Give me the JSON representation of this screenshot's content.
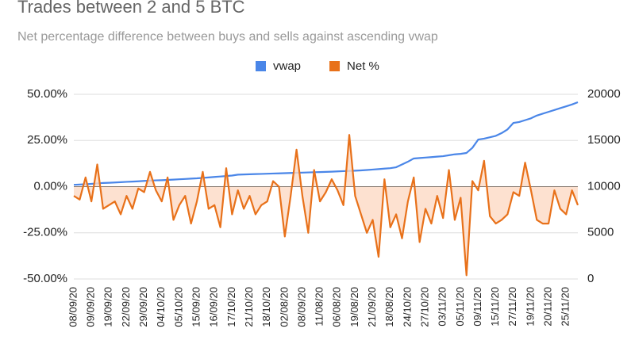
{
  "chart_data": {
    "type": "line",
    "title": "Trades between 2 and 5 BTC",
    "subtitle": "Net percentage difference between buys and sells against ascending vwap",
    "categories": [
      "08/09/20",
      null,
      null,
      "09/09/20",
      null,
      null,
      "19/09/20",
      null,
      null,
      "22/09/20",
      null,
      null,
      "29/09/20",
      null,
      null,
      "04/10/20",
      null,
      null,
      "05/10/20",
      null,
      null,
      "15/09/20",
      null,
      null,
      "16/09/20",
      null,
      null,
      "17/10/20",
      null,
      null,
      "21/10/20",
      null,
      null,
      "18/10/20",
      null,
      null,
      "02/08/20",
      null,
      null,
      "08/09/20",
      null,
      null,
      "11/08/20",
      null,
      null,
      "06/08/20",
      null,
      null,
      "19/08/20",
      null,
      null,
      "21/09/20",
      null,
      null,
      "18/08/20",
      null,
      null,
      "24/10/20",
      null,
      null,
      "27/10/20",
      null,
      null,
      "03/11/20",
      null,
      null,
      "05/11/20",
      null,
      null,
      "09/11/20",
      null,
      null,
      "15/11/20",
      null,
      null,
      "27/11/20",
      null,
      null,
      "19/11/20",
      null,
      null,
      "20/11/20",
      null,
      null,
      "25/11/20",
      null,
      null
    ],
    "series": [
      {
        "name": "vwap",
        "color": "#4a86e8",
        "axis": "y2",
        "values": [
          10200,
          10230,
          10260,
          10300,
          10350,
          10400,
          10420,
          10450,
          10480,
          10520,
          10550,
          10580,
          10620,
          10650,
          10680,
          10700,
          10730,
          10760,
          10800,
          10830,
          10870,
          10900,
          10950,
          11000,
          11050,
          11100,
          11150,
          11200,
          11300,
          11320,
          11340,
          11360,
          11380,
          11400,
          11420,
          11440,
          11460,
          11480,
          11500,
          11520,
          11540,
          11560,
          11580,
          11600,
          11620,
          11650,
          11680,
          11700,
          11730,
          11760,
          11800,
          11850,
          11900,
          11950,
          12000,
          12100,
          12400,
          12700,
          13050,
          13100,
          13150,
          13200,
          13250,
          13300,
          13400,
          13500,
          13550,
          13650,
          14200,
          15100,
          15200,
          15350,
          15500,
          15800,
          16200,
          16900,
          17000,
          17200,
          17400,
          17700,
          17900,
          18100,
          18300,
          18500,
          18700,
          18900,
          19140
        ]
      },
      {
        "name": "Net %",
        "color": "#e8711a",
        "area_color": "#fcd9c4",
        "values": [
          -5,
          -7,
          5,
          -8,
          12,
          -12,
          -10,
          -8,
          -15,
          -5,
          -12,
          -1,
          -3,
          8,
          -2,
          -8,
          5,
          -18,
          -10,
          -5,
          -20,
          -8,
          8,
          -12,
          -10,
          -22,
          10,
          -15,
          -2,
          -12,
          -5,
          -15,
          -10,
          -8,
          3,
          0,
          -27,
          -5,
          20,
          -5,
          -25,
          9,
          -8,
          -3,
          4,
          -2,
          -10,
          28,
          -5,
          -15,
          -25,
          -18,
          -38,
          4,
          -22,
          -15,
          -28,
          -8,
          5,
          -30,
          -12,
          -20,
          -5,
          -17,
          9,
          -18,
          -6,
          -48,
          3,
          -2,
          14,
          -16,
          -20,
          -18,
          -15,
          -3,
          -5,
          13,
          -2,
          -18,
          -20,
          -20,
          -2,
          -12,
          -15,
          -2,
          -10
        ]
      }
    ],
    "ylim": [
      -50,
      50
    ],
    "yticks": [
      {
        "value": -50,
        "label": "-50.00%"
      },
      {
        "value": -25,
        "label": "-25.00%"
      },
      {
        "value": 0,
        "label": "0.00%"
      },
      {
        "value": 25,
        "label": "25.00%"
      },
      {
        "value": 50,
        "label": "50.00%"
      }
    ],
    "y2lim": [
      0,
      20000
    ],
    "y2ticks": [
      0,
      5000,
      10000,
      15000,
      20000
    ],
    "legend": "top"
  }
}
